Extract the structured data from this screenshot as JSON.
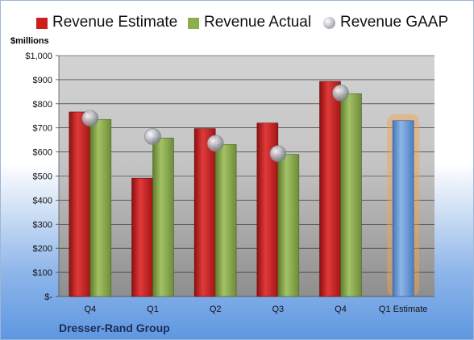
{
  "chart_data": {
    "type": "bar",
    "ylabel": "$millions",
    "ylim": [
      0,
      1000
    ],
    "yticks": [
      0,
      100,
      200,
      300,
      400,
      500,
      600,
      700,
      800,
      900,
      1000
    ],
    "ytick_labels": [
      "$-",
      "$100",
      "$200",
      "$300",
      "$400",
      "$500",
      "$600",
      "$700",
      "$800",
      "$900",
      "$1,000"
    ],
    "categories": [
      "Q4",
      "Q1",
      "Q2",
      "Q3",
      "Q4",
      "Q1 Estimate"
    ],
    "series": [
      {
        "name": "Revenue Estimate",
        "kind": "bar",
        "color": "#cc1f1f",
        "values": [
          766,
          491,
          697,
          720,
          893,
          null
        ]
      },
      {
        "name": "Revenue Actual",
        "kind": "bar",
        "color": "#8cae4c",
        "values": [
          735,
          658,
          631,
          590,
          842,
          null
        ]
      },
      {
        "name": "Revenue GAAP",
        "kind": "marker",
        "color": "#b8bcc2",
        "values": [
          740,
          664,
          636,
          593,
          845,
          null
        ]
      },
      {
        "name": "",
        "kind": "bar",
        "color": "#6f9fd8",
        "values": [
          null,
          null,
          null,
          null,
          null,
          730
        ]
      }
    ],
    "grid": true,
    "legend_position": "top"
  },
  "company": "Dresser-Rand Group"
}
